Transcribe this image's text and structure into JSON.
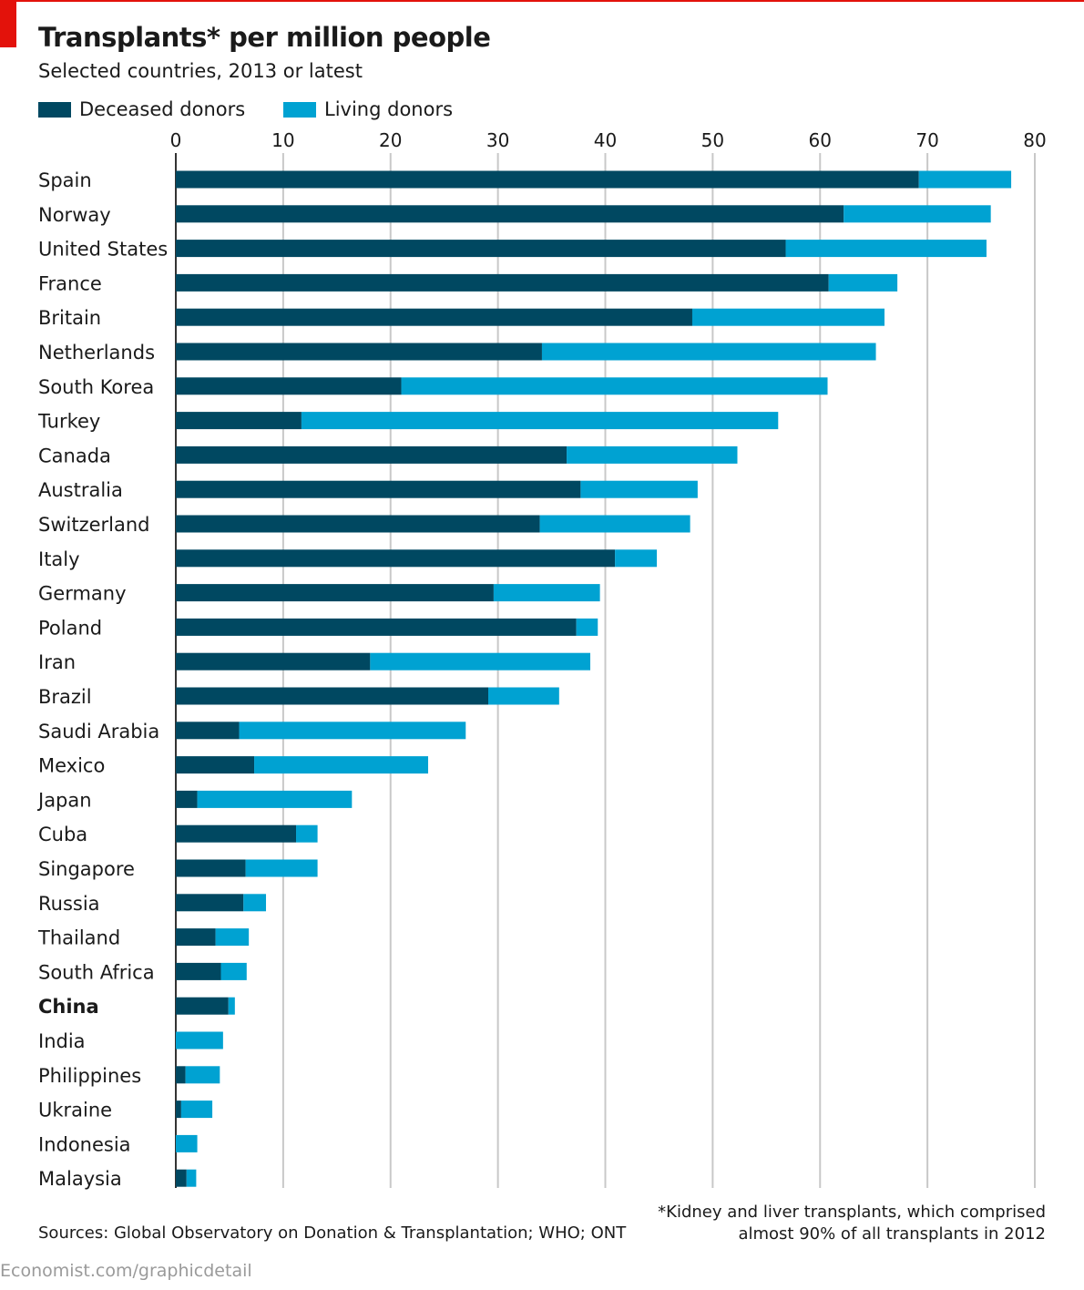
{
  "header": {
    "title": "Transplants* per million people",
    "subtitle": "Selected countries, 2013 or latest"
  },
  "legend": {
    "deceased": "Deceased donors",
    "living": "Living donors"
  },
  "colors": {
    "deceased": "#004861",
    "living": "#00a2d2",
    "grid": "#c8c8c8",
    "accent": "#e3120b"
  },
  "chart_data": {
    "type": "bar",
    "orientation": "horizontal",
    "stacked": true,
    "xlim": [
      0,
      80
    ],
    "xticks": [
      0,
      10,
      20,
      30,
      40,
      50,
      60,
      70,
      80
    ],
    "axis_position": "top",
    "grid": true,
    "legend_position": "top-left",
    "highlighted_category": "China",
    "categories": [
      "Spain",
      "Norway",
      "United States",
      "France",
      "Britain",
      "Netherlands",
      "South Korea",
      "Turkey",
      "Canada",
      "Australia",
      "Switzerland",
      "Italy",
      "Germany",
      "Poland",
      "Iran",
      "Brazil",
      "Saudi Arabia",
      "Mexico",
      "Japan",
      "Cuba",
      "Singapore",
      "Russia",
      "Thailand",
      "South Africa",
      "China",
      "India",
      "Philippines",
      "Ukraine",
      "Indonesia",
      "Malaysia"
    ],
    "series": [
      {
        "name": "Deceased donors",
        "values": [
          69.2,
          62.2,
          56.8,
          60.8,
          48.1,
          34.1,
          21.0,
          11.7,
          36.4,
          37.7,
          33.9,
          40.9,
          29.6,
          37.3,
          18.1,
          29.1,
          5.9,
          7.3,
          2.0,
          11.2,
          6.5,
          6.3,
          3.7,
          4.2,
          4.9,
          0.0,
          0.9,
          0.5,
          0.0,
          1.0
        ]
      },
      {
        "name": "Living donors",
        "values": [
          8.6,
          13.7,
          18.7,
          6.4,
          17.9,
          31.1,
          39.7,
          44.4,
          15.9,
          10.9,
          14.0,
          3.9,
          9.9,
          2.0,
          20.5,
          6.6,
          21.1,
          16.2,
          14.4,
          2.0,
          6.7,
          2.1,
          3.1,
          2.4,
          0.6,
          4.4,
          3.2,
          2.9,
          2.0,
          0.9
        ]
      }
    ]
  },
  "footer": {
    "sources": "Sources: Global Observatory on Donation & Transplantation; WHO; ONT",
    "footnote_line1": "*Kidney and liver transplants, which comprised",
    "footnote_line2": "almost 90% of all transplants in 2012",
    "credit": "Economist.com/graphicdetail"
  }
}
